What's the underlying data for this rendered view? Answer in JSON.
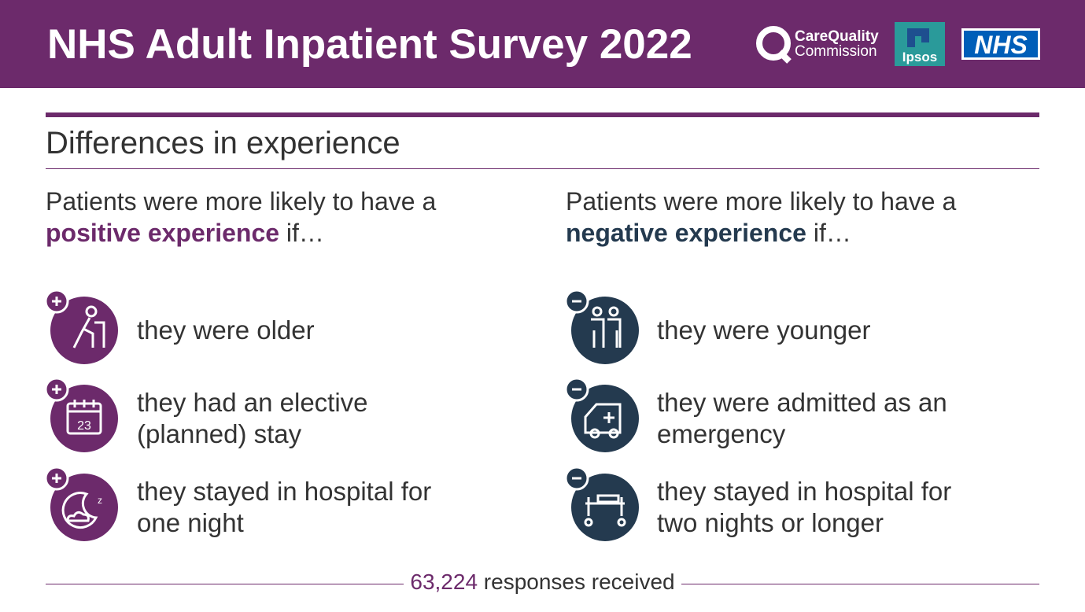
{
  "header": {
    "title": "NHS Adult Inpatient Survey 2022",
    "logos": [
      "CareQuality",
      "Commission",
      "Ipsos",
      "NHS"
    ]
  },
  "section_title": "Differences in experience",
  "columns": [
    {
      "intro": "Patients were more likely to have a",
      "emphasis": "positive experience",
      "suffix": "if…",
      "items": [
        "they were older",
        "they had an elective (planned) stay",
        "they stayed in hospital for one night"
      ]
    },
    {
      "intro": "Patients were more likely to have a",
      "emphasis": "negative experience",
      "suffix": "if…",
      "items": [
        "they were younger",
        "they were admitted as an emergency",
        "they stayed in hospital for two nights or longer"
      ]
    }
  ],
  "footer": {
    "count": "63,224",
    "text": "responses received"
  }
}
